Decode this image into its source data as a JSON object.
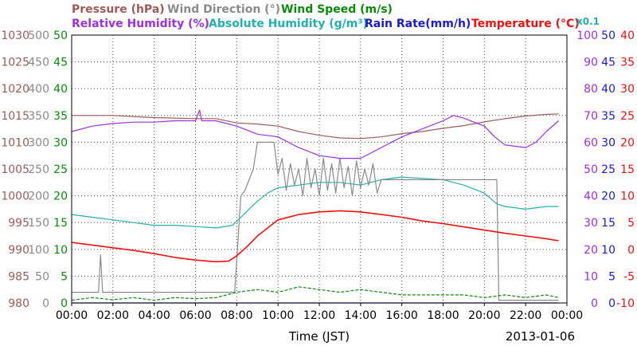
{
  "chart_data": {
    "type": "line",
    "date": "2013-01-06",
    "xlabel": "Time (JST)",
    "x_ticks": [
      "00:00",
      "02:00",
      "04:00",
      "06:00",
      "08:00",
      "10:00",
      "12:00",
      "14:00",
      "16:00",
      "18:00",
      "20:00",
      "22:00",
      "00:00"
    ],
    "xlim_hours": [
      0,
      24
    ],
    "headers": {
      "row1": [
        {
          "key": "pressure",
          "text": "Pressure (hPa)",
          "color": "#9b5b5b"
        },
        {
          "key": "wind_direction",
          "text": "Wind Direction (°)",
          "color": "#8a8a8a"
        },
        {
          "key": "wind_speed",
          "text": "Wind Speed (m/s)",
          "color": "#0a8a0a"
        }
      ],
      "row2": [
        {
          "key": "relative_humidity",
          "text": "Relative Humidity (%)",
          "color": "#9b30e0"
        },
        {
          "key": "absolute_humidity",
          "text": "Absolute Humidity (g/m³)",
          "color": "#20b0b0"
        },
        {
          "key": "rain_rate",
          "text": "Rain Rate(mm/h)",
          "color": "#1a1ad0"
        },
        {
          "key": "temperature",
          "text": "Temperature (°C)",
          "color": "#ee1010"
        }
      ],
      "scale_note": {
        "text": "x0.1",
        "color": "#20b0b0"
      }
    },
    "axes": {
      "pressure": {
        "ylim": [
          980,
          1030
        ],
        "ticks": [
          "1030",
          "1025",
          "1020",
          "1015",
          "1010",
          "1005",
          "1000",
          "995",
          "990",
          "985",
          "980"
        ],
        "color": "#9b5b5b"
      },
      "wind_direction": {
        "ylim": [
          0,
          500
        ],
        "ticks": [
          "500",
          "450",
          "400",
          "350",
          "300",
          "250",
          "200",
          "150",
          "100",
          "50",
          "0"
        ],
        "color": "#8a8a8a"
      },
      "wind_speed": {
        "ylim": [
          0,
          50
        ],
        "ticks": [
          "50",
          "45",
          "40",
          "35",
          "30",
          "25",
          "20",
          "15",
          "10",
          "5",
          "0"
        ],
        "color": "#0a8a0a"
      },
      "relative_humidity": {
        "ylim": [
          0,
          100
        ],
        "ticks": [
          "100",
          "90",
          "80",
          "70",
          "60",
          "50",
          "40",
          "30",
          "20",
          "10",
          "0"
        ],
        "color": "#9b30e0"
      },
      "rain_rate": {
        "ylim": [
          0,
          50
        ],
        "ticks": [
          "50",
          "45",
          "40",
          "35",
          "30",
          "25",
          "20",
          "15",
          "10",
          "5",
          "0"
        ],
        "color": "#1a1ad0"
      },
      "temperature": {
        "ylim": [
          -10,
          40
        ],
        "ticks": [
          "40",
          "35",
          "30",
          "25",
          "20",
          "15",
          "10",
          "5",
          "0",
          "-5",
          "-10"
        ],
        "color": "#ee1010"
      }
    },
    "series": [
      {
        "name": "Pressure (hPa)",
        "axis": "pressure",
        "color": "#9b5b5b",
        "points": [
          [
            0,
            1015
          ],
          [
            2,
            1015
          ],
          [
            4,
            1014.6
          ],
          [
            6,
            1014.4
          ],
          [
            7,
            1014.4
          ],
          [
            8,
            1013.6
          ],
          [
            9,
            1013.4
          ],
          [
            10,
            1013
          ],
          [
            11,
            1012
          ],
          [
            12,
            1011.3
          ],
          [
            13,
            1010.8
          ],
          [
            14,
            1010.7
          ],
          [
            15,
            1011
          ],
          [
            16,
            1011.6
          ],
          [
            17,
            1012
          ],
          [
            18,
            1012.6
          ],
          [
            19,
            1013.1
          ],
          [
            20,
            1013.8
          ],
          [
            21,
            1014.4
          ],
          [
            22,
            1014.9
          ],
          [
            23,
            1015.2
          ],
          [
            23.6,
            1015.3
          ]
        ]
      },
      {
        "name": "Wind Direction (°)",
        "axis": "wind_direction",
        "color": "#8a8a8a",
        "points": [
          [
            0,
            20
          ],
          [
            1.3,
            20
          ],
          [
            1.4,
            90
          ],
          [
            1.5,
            20
          ],
          [
            7.9,
            20
          ],
          [
            8.0,
            80
          ],
          [
            8.2,
            200
          ],
          [
            8.4,
            210
          ],
          [
            8.6,
            230
          ],
          [
            8.8,
            250
          ],
          [
            9.0,
            300
          ],
          [
            9.8,
            300
          ],
          [
            10.0,
            240
          ],
          [
            10.2,
            270
          ],
          [
            10.4,
            210
          ],
          [
            10.6,
            260
          ],
          [
            10.8,
            220
          ],
          [
            11.0,
            250
          ],
          [
            11.2,
            200
          ],
          [
            11.4,
            270
          ],
          [
            11.6,
            215
          ],
          [
            11.8,
            250
          ],
          [
            12.0,
            200
          ],
          [
            12.2,
            270
          ],
          [
            12.4,
            210
          ],
          [
            12.6,
            260
          ],
          [
            12.8,
            205
          ],
          [
            13.0,
            270
          ],
          [
            13.2,
            215
          ],
          [
            13.4,
            255
          ],
          [
            13.6,
            200
          ],
          [
            13.8,
            265
          ],
          [
            14.0,
            215
          ],
          [
            14.2,
            250
          ],
          [
            14.4,
            220
          ],
          [
            14.6,
            260
          ],
          [
            14.8,
            205
          ],
          [
            15.0,
            230
          ],
          [
            16,
            230
          ],
          [
            17,
            230
          ],
          [
            18,
            230
          ],
          [
            19,
            230
          ],
          [
            20,
            230
          ],
          [
            20.6,
            230
          ],
          [
            20.7,
            5
          ],
          [
            23.6,
            5
          ]
        ]
      },
      {
        "name": "Wind Speed (m/s)",
        "axis": "wind_speed",
        "color": "#0a8a0a",
        "points": [
          [
            0,
            0.5
          ],
          [
            1,
            1
          ],
          [
            2,
            0.6
          ],
          [
            3,
            1
          ],
          [
            4,
            0.5
          ],
          [
            5,
            1
          ],
          [
            6,
            0.8
          ],
          [
            7,
            1
          ],
          [
            8,
            2
          ],
          [
            9,
            2.5
          ],
          [
            10,
            2
          ],
          [
            11,
            3
          ],
          [
            12,
            2.5
          ],
          [
            13,
            2
          ],
          [
            14,
            2.5
          ],
          [
            15,
            2
          ],
          [
            16,
            1.5
          ],
          [
            17,
            1.5
          ],
          [
            18,
            1.5
          ],
          [
            19,
            1.5
          ],
          [
            20,
            1
          ],
          [
            21,
            1.5
          ],
          [
            22,
            1
          ],
          [
            23,
            1.5
          ],
          [
            23.6,
            1
          ]
        ]
      },
      {
        "name": "Relative Humidity (%)",
        "axis": "relative_humidity",
        "color": "#9b30e0",
        "points": [
          [
            0,
            64
          ],
          [
            1,
            66
          ],
          [
            2,
            67
          ],
          [
            3,
            67.5
          ],
          [
            4,
            67.5
          ],
          [
            5,
            68
          ],
          [
            6,
            68
          ],
          [
            6.2,
            72
          ],
          [
            6.3,
            68
          ],
          [
            7,
            68
          ],
          [
            8,
            66
          ],
          [
            9,
            63
          ],
          [
            10,
            62
          ],
          [
            11,
            58
          ],
          [
            12,
            55
          ],
          [
            13,
            54
          ],
          [
            14,
            54
          ],
          [
            15,
            58
          ],
          [
            16,
            62
          ],
          [
            17,
            65
          ],
          [
            18,
            68
          ],
          [
            18.5,
            70
          ],
          [
            19,
            69
          ],
          [
            20,
            66
          ],
          [
            20.5,
            62
          ],
          [
            21,
            59
          ],
          [
            22,
            58
          ],
          [
            22.5,
            60
          ],
          [
            23,
            64
          ],
          [
            23.6,
            68
          ]
        ]
      },
      {
        "name": "Absolute Humidity (g/m³)",
        "axis": "relative_humidity",
        "color": "#20b0b0",
        "points": [
          [
            0,
            33
          ],
          [
            1,
            32
          ],
          [
            2,
            31
          ],
          [
            3,
            30
          ],
          [
            4,
            29
          ],
          [
            5,
            29
          ],
          [
            6,
            28.5
          ],
          [
            7,
            28
          ],
          [
            7.8,
            29
          ],
          [
            8.2,
            32
          ],
          [
            8.6,
            35
          ],
          [
            9,
            38
          ],
          [
            9.5,
            41
          ],
          [
            10,
            43
          ],
          [
            11,
            44
          ],
          [
            12,
            45
          ],
          [
            13,
            45
          ],
          [
            14,
            44
          ],
          [
            15,
            46
          ],
          [
            16,
            47
          ],
          [
            17,
            46.5
          ],
          [
            18,
            46
          ],
          [
            19,
            44
          ],
          [
            20,
            41
          ],
          [
            20.6,
            37
          ],
          [
            21,
            36
          ],
          [
            22,
            35
          ],
          [
            23,
            36
          ],
          [
            23.6,
            36
          ]
        ]
      },
      {
        "name": "Rain Rate(mm/h)",
        "axis": "rain_rate",
        "color": "#1a1ad0",
        "points": [
          [
            0,
            0
          ],
          [
            23.6,
            0
          ]
        ]
      },
      {
        "name": "Temperature (°C)",
        "axis": "temperature",
        "color": "#ee1010",
        "points": [
          [
            0,
            1.3
          ],
          [
            1,
            0.8
          ],
          [
            2,
            0.3
          ],
          [
            3,
            -0.2
          ],
          [
            4,
            -0.8
          ],
          [
            5,
            -1.5
          ],
          [
            6,
            -2
          ],
          [
            7,
            -2.3
          ],
          [
            7.6,
            -2.2
          ],
          [
            8,
            -1.2
          ],
          [
            8.5,
            0.5
          ],
          [
            9,
            2.5
          ],
          [
            9.5,
            4
          ],
          [
            10,
            5.5
          ],
          [
            11,
            6.5
          ],
          [
            12,
            7
          ],
          [
            13,
            7.2
          ],
          [
            14,
            7
          ],
          [
            15,
            6.5
          ],
          [
            16,
            6
          ],
          [
            17,
            5.3
          ],
          [
            18,
            4.8
          ],
          [
            19,
            4.2
          ],
          [
            20,
            3.6
          ],
          [
            21,
            3
          ],
          [
            22,
            2.5
          ],
          [
            23,
            2
          ],
          [
            23.6,
            1.6
          ]
        ]
      }
    ]
  }
}
